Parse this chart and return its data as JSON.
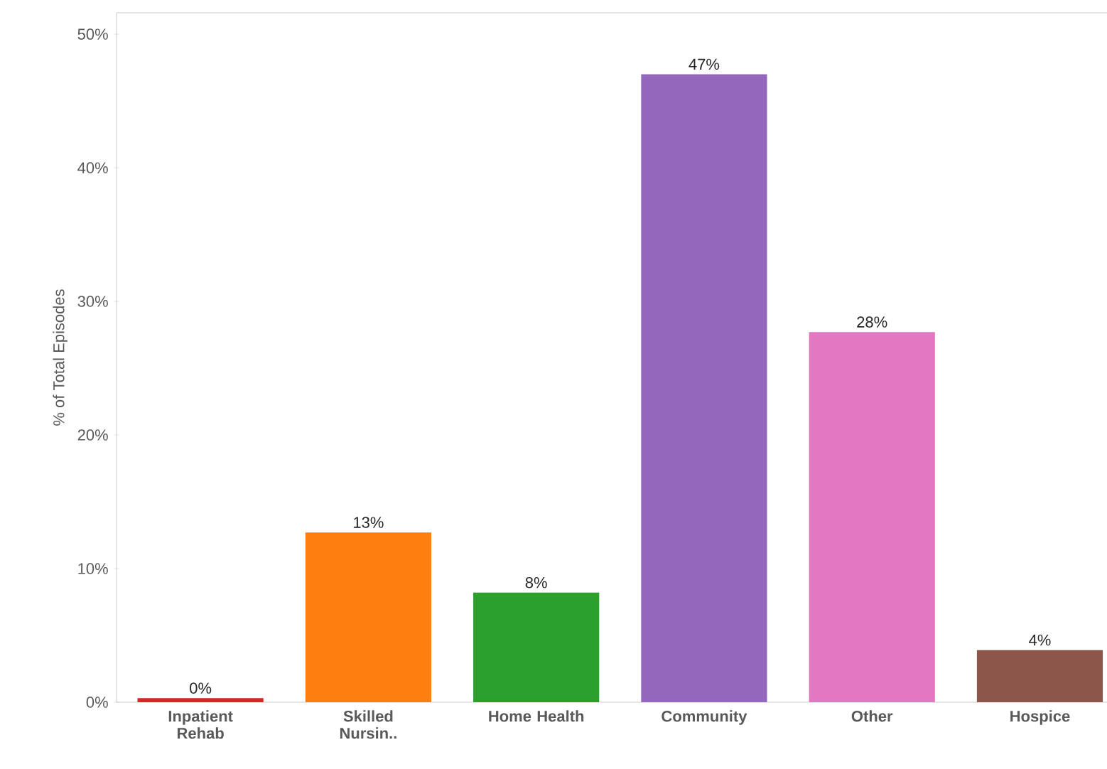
{
  "chart_data": {
    "type": "bar",
    "ylabel": "% of Total Episodes",
    "categories": [
      "Inpatient Rehab",
      "Skilled Nursin..",
      "Home Health",
      "Community",
      "Other",
      "Hospice"
    ],
    "values": [
      0.3,
      12.7,
      8.2,
      47.0,
      27.7,
      3.9
    ],
    "colors": [
      "#d62728",
      "#ff7f0e",
      "#2ca02c",
      "#9467bd",
      "#e377c2",
      "#8c564b"
    ],
    "value_labels": [
      "0%",
      "13%",
      "8%",
      "47%",
      "28%",
      "4%"
    ],
    "ylim": [
      0,
      51.6
    ],
    "yticks": [
      {
        "value": 0,
        "label": "0%"
      },
      {
        "value": 10,
        "label": "10%"
      },
      {
        "value": 20,
        "label": "20%"
      },
      {
        "value": 30,
        "label": "30%"
      },
      {
        "value": 40,
        "label": "40%"
      },
      {
        "value": 50,
        "label": "50%"
      }
    ]
  }
}
